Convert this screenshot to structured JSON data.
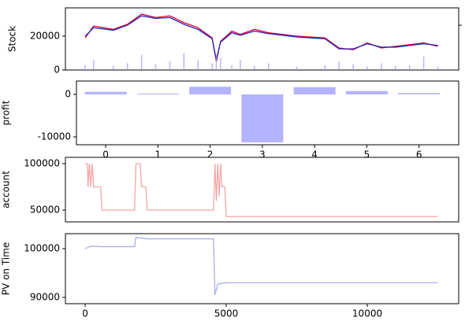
{
  "chart_data": [
    {
      "type": "line",
      "y_label": "Stock",
      "xlim": [
        -700,
        13240
      ],
      "ylim": [
        0,
        36700
      ],
      "yticks": [
        0,
        20000
      ],
      "x": [
        0,
        300,
        1000,
        1500,
        2000,
        2500,
        3000,
        3500,
        4000,
        4500,
        4650,
        4800,
        5200,
        5500,
        6000,
        6500,
        7500,
        8500,
        9000,
        9500,
        10000,
        10500,
        11000,
        11500,
        12000,
        12500
      ],
      "series": [
        {
          "type": "line",
          "color": "#dd0033",
          "values": [
            19000,
            26000,
            24000,
            27000,
            33000,
            31000,
            32000,
            28000,
            25000,
            19000,
            5000,
            17000,
            23000,
            21000,
            24000,
            22000,
            20000,
            19000,
            13000,
            12000,
            16000,
            13000,
            14000,
            15000,
            16000,
            14000
          ]
        },
        {
          "type": "line",
          "color": "#2222bb",
          "values": [
            20000,
            25000,
            23500,
            26500,
            32000,
            30500,
            31000,
            27000,
            24000,
            18500,
            6000,
            16500,
            22000,
            20500,
            23000,
            21500,
            19500,
            18500,
            12500,
            12500,
            15500,
            13500,
            13500,
            14500,
            15500,
            14500
          ]
        },
        {
          "type": "bar",
          "color": "#9999ee",
          "values": [
            3000,
            6000,
            2500,
            4000,
            9000,
            3500,
            5000,
            10000,
            6000,
            4000,
            9000,
            7000,
            3000,
            6000,
            2500,
            4000,
            2000,
            3000,
            5000,
            3500,
            2000,
            4000,
            2500,
            3000,
            8000,
            2000
          ]
        }
      ]
    },
    {
      "type": "bar",
      "y_label": "profit",
      "xlim": [
        -0.56,
        6.76
      ],
      "ylim": [
        -11850,
        3150
      ],
      "yticks": [
        -10000,
        0
      ],
      "xticks": [
        0,
        1,
        2,
        3,
        4,
        5,
        6
      ],
      "x": [
        0,
        1,
        2,
        3,
        4,
        5,
        6
      ],
      "color": "#b3b3ff",
      "values": [
        600,
        200,
        1800,
        -11300,
        1700,
        800,
        300
      ]
    },
    {
      "type": "line",
      "y_label": "account",
      "xlim": [
        -700,
        13240
      ],
      "ylim": [
        37300,
        106800
      ],
      "yticks": [
        50000,
        100000
      ],
      "x": [
        0,
        80,
        100,
        150,
        200,
        250,
        300,
        550,
        600,
        1750,
        1800,
        1950,
        2000,
        2150,
        2200,
        4550,
        4600,
        4650,
        4700,
        4750,
        4800,
        4850,
        4950,
        5000,
        12500
      ],
      "series": [
        {
          "type": "line",
          "color": "#f4a6a6",
          "values": [
            100000,
            100000,
            75000,
            100000,
            75000,
            100000,
            75000,
            75000,
            50000,
            50000,
            100000,
            100000,
            75000,
            75000,
            50000,
            50000,
            100000,
            60000,
            100000,
            65000,
            100000,
            75000,
            75000,
            43000,
            43000
          ]
        }
      ]
    },
    {
      "type": "line",
      "y_label": "PV on Time",
      "xlim": [
        -700,
        13240
      ],
      "ylim": [
        88700,
        103060
      ],
      "yticks": [
        90000,
        100000
      ],
      "xticks": [
        0,
        5000,
        10000
      ],
      "x": [
        0,
        200,
        600,
        1750,
        1800,
        2200,
        4550,
        4600,
        4700,
        5000,
        12500
      ],
      "series": [
        {
          "type": "line",
          "color": "#a9acec",
          "values": [
            100000,
            100500,
            100400,
            100400,
            102300,
            102000,
            102000,
            90500,
            92700,
            93000,
            93000
          ]
        }
      ]
    }
  ]
}
